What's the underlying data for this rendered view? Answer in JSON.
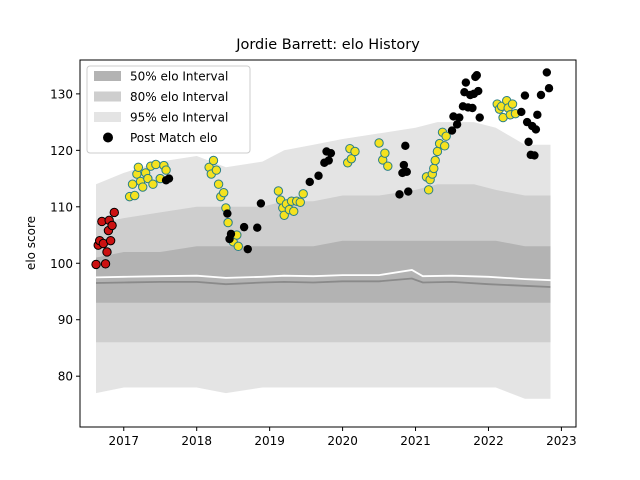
{
  "chart_data": {
    "type": "scatter",
    "title": "Jordie Barrett: elo History",
    "xlabel": "",
    "ylabel": "elo score",
    "xlim": [
      2016.4,
      2023.2
    ],
    "ylim": [
      71,
      136
    ],
    "x_ticks": [
      2017,
      2018,
      2019,
      2020,
      2021,
      2022,
      2023
    ],
    "y_ticks": [
      80,
      90,
      100,
      110,
      120,
      130
    ],
    "grid": false,
    "legend": {
      "placement": "top-left",
      "entries": [
        "50% elo Interval",
        "80% elo Interval",
        "95% elo Interval",
        "Post Match elo"
      ]
    },
    "colors": {
      "band_50": "#b3b3b3",
      "band_80": "#cecece",
      "band_95": "#e4e4e4",
      "median_line": "#8a8a8a",
      "mean_line": "#ffffff",
      "point_black": "#000000",
      "point_yellow": "#f5e21f",
      "point_red": "#cc1111",
      "edge_teal": "#2a7f86"
    },
    "bands": {
      "x": [
        2016.62,
        2017.0,
        2017.5,
        2018.0,
        2018.4,
        2018.9,
        2019.2,
        2019.6,
        2020.0,
        2020.5,
        2021.0,
        2021.3,
        2021.8,
        2022.1,
        2022.5,
        2022.85
      ],
      "p95_hi": [
        114,
        116,
        118,
        119,
        117,
        118,
        120,
        121,
        122,
        123,
        124,
        125,
        125,
        124,
        121,
        121
      ],
      "p80_hi": [
        107,
        108,
        109,
        110,
        110,
        110,
        111,
        111,
        112,
        112,
        113,
        114,
        114,
        113,
        112,
        112
      ],
      "p50_hi": [
        101,
        102,
        102,
        103,
        103,
        103,
        103,
        103,
        104,
        104,
        104,
        104,
        104,
        104,
        103,
        103
      ],
      "p50_lo": [
        93,
        93,
        93,
        93,
        93,
        93,
        93,
        93,
        93,
        93,
        93,
        93,
        93,
        93,
        93,
        93
      ],
      "p80_lo": [
        86,
        86,
        86,
        86,
        86,
        86,
        86,
        86,
        86,
        86,
        86,
        86,
        86,
        86,
        86,
        86
      ],
      "p95_lo": [
        77,
        78,
        78,
        78,
        77,
        78,
        78,
        78,
        78,
        78,
        78,
        78,
        78,
        78,
        76,
        76
      ]
    },
    "mean_line": {
      "x": [
        2016.62,
        2017.0,
        2017.5,
        2018.0,
        2018.4,
        2018.9,
        2019.2,
        2019.6,
        2020.0,
        2020.5,
        2020.95,
        2021.1,
        2021.5,
        2022.0,
        2022.5,
        2022.85
      ],
      "y": [
        97.5,
        97.6,
        97.7,
        97.8,
        97.4,
        97.6,
        97.8,
        97.7,
        97.9,
        97.9,
        98.8,
        97.7,
        97.8,
        97.6,
        97.2,
        97.0
      ]
    },
    "median_line": {
      "x": [
        2016.62,
        2017.0,
        2017.5,
        2018.0,
        2018.4,
        2018.9,
        2019.2,
        2019.6,
        2020.0,
        2020.5,
        2020.95,
        2021.1,
        2021.5,
        2022.0,
        2022.5,
        2022.85
      ],
      "y": [
        96.5,
        96.6,
        96.7,
        96.7,
        96.3,
        96.6,
        96.7,
        96.6,
        96.8,
        96.8,
        97.3,
        96.6,
        96.7,
        96.3,
        96.0,
        95.8
      ]
    },
    "points_red": [
      [
        2016.62,
        99.8
      ],
      [
        2016.65,
        103.2
      ],
      [
        2016.67,
        104.0
      ],
      [
        2016.7,
        107.4
      ],
      [
        2016.72,
        103.5
      ],
      [
        2016.75,
        99.9
      ],
      [
        2016.77,
        102.0
      ],
      [
        2016.79,
        105.8
      ],
      [
        2016.8,
        107.6
      ],
      [
        2016.82,
        104.0
      ],
      [
        2016.84,
        106.7
      ],
      [
        2016.87,
        109.0
      ]
    ],
    "points_yellow": [
      [
        2017.08,
        111.8
      ],
      [
        2017.12,
        114.0
      ],
      [
        2017.15,
        112.0
      ],
      [
        2017.18,
        115.8
      ],
      [
        2017.2,
        117.0
      ],
      [
        2017.23,
        114.5
      ],
      [
        2017.26,
        113.5
      ],
      [
        2017.3,
        116.0
      ],
      [
        2017.33,
        115.0
      ],
      [
        2017.37,
        117.2
      ],
      [
        2017.4,
        114.0
      ],
      [
        2017.44,
        117.5
      ],
      [
        2017.5,
        115.0
      ],
      [
        2017.55,
        117.3
      ],
      [
        2017.58,
        116.5
      ],
      [
        2018.17,
        117.0
      ],
      [
        2018.2,
        115.8
      ],
      [
        2018.23,
        118.2
      ],
      [
        2018.27,
        116.5
      ],
      [
        2018.3,
        114.0
      ],
      [
        2018.33,
        111.8
      ],
      [
        2018.37,
        112.5
      ],
      [
        2018.4,
        109.8
      ],
      [
        2018.43,
        107.2
      ],
      [
        2018.5,
        103.8
      ],
      [
        2018.55,
        105.0
      ],
      [
        2018.57,
        103.0
      ],
      [
        2019.12,
        112.8
      ],
      [
        2019.15,
        111.2
      ],
      [
        2019.18,
        109.8
      ],
      [
        2019.2,
        108.5
      ],
      [
        2019.23,
        110.5
      ],
      [
        2019.27,
        109.5
      ],
      [
        2019.3,
        111.0
      ],
      [
        2019.33,
        109.2
      ],
      [
        2019.37,
        111.0
      ],
      [
        2019.42,
        110.8
      ],
      [
        2019.46,
        112.3
      ],
      [
        2020.07,
        117.8
      ],
      [
        2020.1,
        120.3
      ],
      [
        2020.12,
        118.5
      ],
      [
        2020.17,
        119.8
      ],
      [
        2020.5,
        121.3
      ],
      [
        2020.55,
        118.3
      ],
      [
        2020.58,
        119.5
      ],
      [
        2020.62,
        117.2
      ],
      [
        2021.15,
        115.3
      ],
      [
        2021.18,
        113.0
      ],
      [
        2021.2,
        114.8
      ],
      [
        2021.23,
        115.8
      ],
      [
        2021.25,
        116.8
      ],
      [
        2021.27,
        118.2
      ],
      [
        2021.3,
        119.8
      ],
      [
        2021.33,
        121.2
      ],
      [
        2021.37,
        123.2
      ],
      [
        2021.4,
        120.8
      ],
      [
        2021.42,
        122.5
      ],
      [
        2022.12,
        128.2
      ],
      [
        2022.15,
        127.3
      ],
      [
        2022.18,
        127.8
      ],
      [
        2022.2,
        125.8
      ],
      [
        2022.25,
        128.8
      ],
      [
        2022.27,
        127.5
      ],
      [
        2022.3,
        126.3
      ],
      [
        2022.33,
        128.2
      ],
      [
        2022.37,
        126.5
      ]
    ],
    "points_black": [
      [
        2017.58,
        114.7
      ],
      [
        2017.62,
        115.0
      ],
      [
        2018.42,
        108.8
      ],
      [
        2018.45,
        104.3
      ],
      [
        2018.47,
        105.2
      ],
      [
        2018.65,
        106.4
      ],
      [
        2018.7,
        102.5
      ],
      [
        2018.83,
        106.3
      ],
      [
        2018.88,
        110.6
      ],
      [
        2019.55,
        114.4
      ],
      [
        2019.67,
        115.5
      ],
      [
        2019.75,
        117.8
      ],
      [
        2019.78,
        119.8
      ],
      [
        2019.81,
        118.2
      ],
      [
        2019.84,
        119.5
      ],
      [
        2020.78,
        112.2
      ],
      [
        2020.82,
        116.0
      ],
      [
        2020.84,
        117.4
      ],
      [
        2020.86,
        120.8
      ],
      [
        2020.88,
        116.2
      ],
      [
        2020.9,
        112.7
      ],
      [
        2021.5,
        123.5
      ],
      [
        2021.52,
        126.0
      ],
      [
        2021.57,
        124.6
      ],
      [
        2021.6,
        125.8
      ],
      [
        2021.65,
        127.8
      ],
      [
        2021.67,
        130.3
      ],
      [
        2021.69,
        132.0
      ],
      [
        2021.72,
        127.6
      ],
      [
        2021.75,
        129.8
      ],
      [
        2021.78,
        127.5
      ],
      [
        2021.8,
        130.0
      ],
      [
        2021.82,
        133.0
      ],
      [
        2021.84,
        133.3
      ],
      [
        2021.86,
        130.5
      ],
      [
        2021.88,
        125.8
      ],
      [
        2022.45,
        126.8
      ],
      [
        2022.5,
        129.7
      ],
      [
        2022.53,
        125.0
      ],
      [
        2022.55,
        121.5
      ],
      [
        2022.58,
        119.2
      ],
      [
        2022.6,
        124.3
      ],
      [
        2022.63,
        119.1
      ],
      [
        2022.65,
        123.7
      ],
      [
        2022.67,
        126.3
      ],
      [
        2022.72,
        129.8
      ],
      [
        2022.8,
        133.8
      ],
      [
        2022.83,
        131.0
      ]
    ]
  }
}
